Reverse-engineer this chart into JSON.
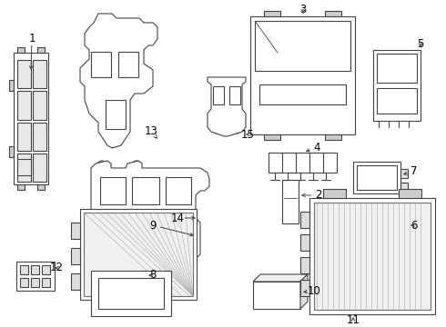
{
  "bg_color": "#ffffff",
  "line_color": "#444444",
  "label_color": "#000000",
  "fig_width": 4.9,
  "fig_height": 3.6,
  "dpi": 100
}
